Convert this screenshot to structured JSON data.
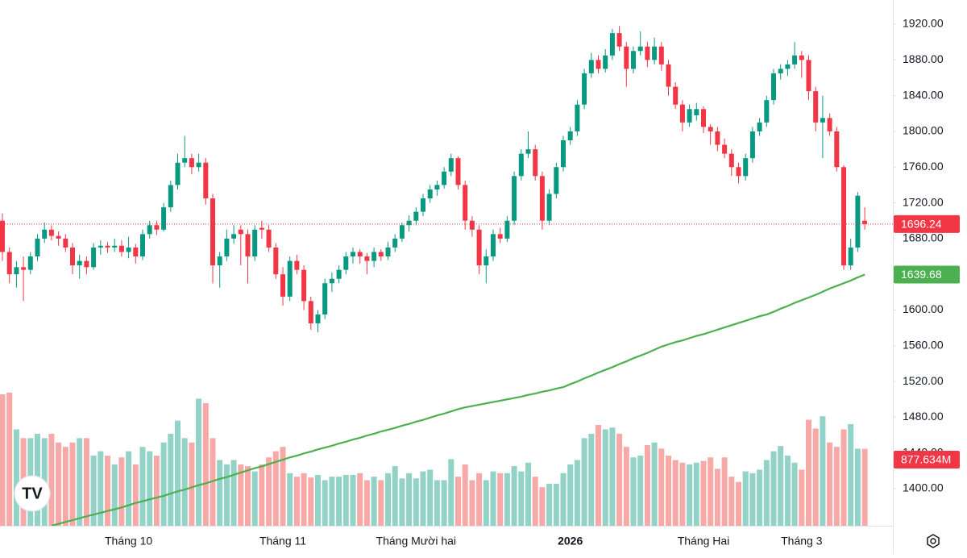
{
  "chart_data": {
    "type": "candlestick",
    "up_color": "#089981",
    "down_color": "#f23645",
    "volume_up_color": "#92d2c7",
    "volume_down_color": "#f7a9a7",
    "ylim": [
      1358.5,
      1947.1
    ],
    "yticks": [
      {
        "value": 1400,
        "label": "1400.00"
      },
      {
        "value": 1440,
        "label": "1440.00"
      },
      {
        "value": 1480,
        "label": "1480.00"
      },
      {
        "value": 1520,
        "label": "1520.00"
      },
      {
        "value": 1560,
        "label": "1560.00"
      },
      {
        "value": 1600,
        "label": "1600.00"
      },
      {
        "value": 1640,
        "label": "1640.00"
      },
      {
        "value": 1680,
        "label": "1680.00"
      },
      {
        "value": 1720,
        "label": "1720.00"
      },
      {
        "value": 1760,
        "label": "1760.00"
      },
      {
        "value": 1800,
        "label": "1800.00"
      },
      {
        "value": 1840,
        "label": "1840.00"
      },
      {
        "value": 1880,
        "label": "1880.00"
      },
      {
        "value": 1920,
        "label": "1920.00"
      }
    ],
    "grid": false,
    "categories": [
      null,
      null,
      null,
      null,
      null,
      null,
      null,
      null,
      null,
      null,
      null,
      null,
      null,
      null,
      null,
      null,
      null,
      null,
      "Tháng 10",
      null,
      null,
      null,
      null,
      null,
      null,
      null,
      null,
      null,
      null,
      null,
      null,
      null,
      null,
      null,
      null,
      null,
      null,
      null,
      null,
      null,
      "Tháng 11",
      null,
      null,
      null,
      null,
      null,
      null,
      null,
      null,
      null,
      null,
      null,
      null,
      null,
      null,
      null,
      null,
      null,
      null,
      "Tháng Mười hai",
      null,
      null,
      null,
      null,
      null,
      null,
      null,
      null,
      null,
      null,
      null,
      null,
      null,
      null,
      null,
      null,
      null,
      null,
      null,
      null,
      null,
      "2026",
      null,
      null,
      null,
      null,
      null,
      null,
      null,
      null,
      null,
      null,
      null,
      null,
      null,
      null,
      null,
      null,
      null,
      null,
      "Tháng Hai",
      null,
      null,
      null,
      null,
      null,
      null,
      null,
      null,
      null,
      null,
      null,
      null,
      null,
      "Tháng 3",
      null,
      null,
      null,
      null,
      null,
      null,
      null,
      null,
      null
    ],
    "candles": [
      [
        1700,
        1708,
        1655,
        1665
      ],
      [
        1665,
        1670,
        1630,
        1640
      ],
      [
        1640,
        1655,
        1625,
        1648
      ],
      [
        1648,
        1660,
        1610,
        1645
      ],
      [
        1645,
        1665,
        1640,
        1660
      ],
      [
        1660,
        1685,
        1655,
        1680
      ],
      [
        1680,
        1698,
        1675,
        1690
      ],
      [
        1690,
        1695,
        1678,
        1683
      ],
      [
        1683,
        1688,
        1672,
        1680
      ],
      [
        1680,
        1685,
        1665,
        1670
      ],
      [
        1670,
        1675,
        1640,
        1650
      ],
      [
        1650,
        1662,
        1635,
        1655
      ],
      [
        1655,
        1660,
        1640,
        1648
      ],
      [
        1648,
        1675,
        1645,
        1670
      ],
      [
        1670,
        1678,
        1662,
        1672
      ],
      [
        1672,
        1676,
        1664,
        1670
      ],
      [
        1670,
        1680,
        1665,
        1672
      ],
      [
        1672,
        1678,
        1660,
        1665
      ],
      [
        1665,
        1682,
        1658,
        1670
      ],
      [
        1670,
        1674,
        1652,
        1660
      ],
      [
        1660,
        1690,
        1656,
        1685
      ],
      [
        1685,
        1700,
        1680,
        1695
      ],
      [
        1695,
        1700,
        1684,
        1690
      ],
      [
        1690,
        1720,
        1688,
        1715
      ],
      [
        1715,
        1745,
        1710,
        1740
      ],
      [
        1740,
        1775,
        1735,
        1765
      ],
      [
        1765,
        1795,
        1760,
        1770
      ],
      [
        1770,
        1775,
        1752,
        1760
      ],
      [
        1760,
        1775,
        1755,
        1765
      ],
      [
        1765,
        1770,
        1718,
        1725
      ],
      [
        1725,
        1730,
        1630,
        1650
      ],
      [
        1650,
        1665,
        1625,
        1660
      ],
      [
        1660,
        1690,
        1655,
        1680
      ],
      [
        1680,
        1695,
        1674,
        1685
      ],
      [
        1690,
        1695,
        1650,
        1685
      ],
      [
        1685,
        1690,
        1630,
        1660
      ],
      [
        1660,
        1695,
        1655,
        1690
      ],
      [
        1692,
        1700,
        1680,
        1690
      ],
      [
        1690,
        1695,
        1665,
        1670
      ],
      [
        1670,
        1675,
        1635,
        1640
      ],
      [
        1640,
        1648,
        1605,
        1615
      ],
      [
        1615,
        1660,
        1610,
        1655
      ],
      [
        1655,
        1662,
        1640,
        1645
      ],
      [
        1645,
        1650,
        1600,
        1610
      ],
      [
        1610,
        1615,
        1578,
        1585
      ],
      [
        1585,
        1600,
        1575,
        1595
      ],
      [
        1595,
        1635,
        1590,
        1630
      ],
      [
        1630,
        1642,
        1620,
        1635
      ],
      [
        1635,
        1650,
        1630,
        1645
      ],
      [
        1645,
        1665,
        1640,
        1660
      ],
      [
        1660,
        1670,
        1652,
        1665
      ],
      [
        1665,
        1668,
        1652,
        1660
      ],
      [
        1660,
        1664,
        1640,
        1655
      ],
      [
        1655,
        1670,
        1648,
        1665
      ],
      [
        1665,
        1668,
        1655,
        1660
      ],
      [
        1660,
        1676,
        1656,
        1670
      ],
      [
        1670,
        1685,
        1665,
        1680
      ],
      [
        1680,
        1698,
        1676,
        1695
      ],
      [
        1695,
        1706,
        1688,
        1700
      ],
      [
        1700,
        1715,
        1695,
        1710
      ],
      [
        1710,
        1730,
        1705,
        1725
      ],
      [
        1725,
        1740,
        1720,
        1735
      ],
      [
        1735,
        1745,
        1728,
        1740
      ],
      [
        1740,
        1760,
        1736,
        1755
      ],
      [
        1755,
        1775,
        1750,
        1770
      ],
      [
        1770,
        1772,
        1735,
        1740
      ],
      [
        1740,
        1745,
        1690,
        1700
      ],
      [
        1700,
        1705,
        1682,
        1690
      ],
      [
        1690,
        1695,
        1640,
        1650
      ],
      [
        1650,
        1668,
        1630,
        1660
      ],
      [
        1660,
        1690,
        1655,
        1685
      ],
      [
        1685,
        1692,
        1675,
        1680
      ],
      [
        1680,
        1705,
        1676,
        1700
      ],
      [
        1700,
        1755,
        1695,
        1750
      ],
      [
        1750,
        1780,
        1745,
        1775
      ],
      [
        1775,
        1800,
        1770,
        1780
      ],
      [
        1780,
        1785,
        1745,
        1750
      ],
      [
        1750,
        1755,
        1690,
        1700
      ],
      [
        1700,
        1735,
        1695,
        1730
      ],
      [
        1730,
        1765,
        1725,
        1760
      ],
      [
        1760,
        1795,
        1755,
        1790
      ],
      [
        1790,
        1805,
        1785,
        1800
      ],
      [
        1800,
        1835,
        1795,
        1830
      ],
      [
        1830,
        1870,
        1825,
        1865
      ],
      [
        1865,
        1888,
        1860,
        1880
      ],
      [
        1880,
        1885,
        1865,
        1870
      ],
      [
        1870,
        1892,
        1866,
        1885
      ],
      [
        1885,
        1915,
        1880,
        1910
      ],
      [
        1910,
        1918,
        1890,
        1895
      ],
      [
        1895,
        1900,
        1850,
        1870
      ],
      [
        1870,
        1895,
        1865,
        1890
      ],
      [
        1890,
        1912,
        1885,
        1895
      ],
      [
        1895,
        1900,
        1872,
        1880
      ],
      [
        1880,
        1905,
        1875,
        1895
      ],
      [
        1895,
        1900,
        1868,
        1875
      ],
      [
        1875,
        1880,
        1840,
        1850
      ],
      [
        1850,
        1855,
        1825,
        1830
      ],
      [
        1830,
        1835,
        1800,
        1810
      ],
      [
        1810,
        1830,
        1805,
        1825
      ],
      [
        1818,
        1832,
        1812,
        1825
      ],
      [
        1825,
        1828,
        1798,
        1805
      ],
      [
        1805,
        1808,
        1785,
        1800
      ],
      [
        1800,
        1805,
        1778,
        1785
      ],
      [
        1785,
        1792,
        1770,
        1775
      ],
      [
        1775,
        1780,
        1750,
        1760
      ],
      [
        1760,
        1765,
        1742,
        1750
      ],
      [
        1750,
        1775,
        1745,
        1770
      ],
      [
        1770,
        1805,
        1765,
        1800
      ],
      [
        1800,
        1815,
        1795,
        1810
      ],
      [
        1810,
        1840,
        1805,
        1835
      ],
      [
        1835,
        1870,
        1830,
        1865
      ],
      [
        1865,
        1875,
        1858,
        1870
      ],
      [
        1870,
        1880,
        1862,
        1875
      ],
      [
        1875,
        1900,
        1870,
        1885
      ],
      [
        1885,
        1890,
        1860,
        1880
      ],
      [
        1880,
        1885,
        1835,
        1845
      ],
      [
        1845,
        1850,
        1800,
        1810
      ],
      [
        1810,
        1840,
        1770,
        1815
      ],
      [
        1815,
        1820,
        1795,
        1800
      ],
      [
        1800,
        1805,
        1755,
        1760
      ],
      [
        1760,
        1762,
        1645,
        1650
      ],
      [
        1650,
        1680,
        1645,
        1670
      ],
      [
        1670,
        1732,
        1665,
        1728
      ],
      [
        1700,
        1715,
        1690,
        1696.24
      ]
    ],
    "volume": {
      "lim": [
        0,
        6000
      ],
      "values": [
        1500,
        1520,
        1100,
        1000,
        1000,
        1050,
        1000,
        1050,
        950,
        900,
        950,
        1000,
        1000,
        800,
        850,
        800,
        700,
        780,
        850,
        700,
        900,
        850,
        800,
        950,
        1050,
        1200,
        1000,
        950,
        1450,
        1400,
        1000,
        750,
        700,
        750,
        700,
        680,
        620,
        700,
        780,
        850,
        900,
        600,
        560,
        600,
        550,
        580,
        520,
        560,
        560,
        580,
        580,
        600,
        520,
        560,
        520,
        600,
        680,
        540,
        600,
        540,
        620,
        640,
        520,
        520,
        760,
        560,
        700,
        520,
        600,
        520,
        620,
        600,
        600,
        680,
        620,
        720,
        560,
        440,
        480,
        480,
        600,
        700,
        750,
        1000,
        1050,
        1150,
        1100,
        1120,
        1050,
        900,
        780,
        800,
        920,
        950,
        880,
        800,
        750,
        720,
        700,
        720,
        740,
        780,
        650,
        780,
        560,
        500,
        620,
        600,
        640,
        750,
        850,
        910,
        800,
        720,
        640,
        1210,
        1110,
        1250,
        950,
        900,
        1100,
        1160,
        880,
        877.634
      ],
      "value_labels": [
        null,
        null,
        null,
        null,
        null,
        null,
        null,
        null,
        null,
        null,
        null,
        null,
        null,
        null,
        null,
        null,
        null,
        null,
        null,
        null,
        null,
        null,
        null,
        null,
        null,
        null,
        null,
        null,
        null,
        null,
        null,
        null,
        null,
        null,
        null,
        null,
        null,
        null,
        null,
        null,
        null,
        null,
        null,
        null,
        null,
        null,
        null,
        null,
        null,
        null,
        null,
        null,
        null,
        null,
        null,
        null,
        null,
        null,
        null,
        null,
        null,
        null,
        null,
        null,
        null,
        null,
        null,
        null,
        null,
        null,
        null,
        null,
        null,
        null,
        null,
        null,
        null,
        null,
        null,
        null,
        null,
        null,
        null,
        null,
        null,
        null,
        null,
        null,
        null,
        null,
        null,
        null,
        null,
        null,
        null,
        null,
        null,
        null,
        null,
        null,
        null,
        null,
        null,
        null,
        null,
        null,
        null,
        null,
        null,
        null,
        null,
        null,
        null,
        null,
        null,
        null,
        null,
        null,
        null,
        null,
        null,
        null,
        null,
        "877.634M"
      ]
    },
    "ma": {
      "color": "#4caf50",
      "values": [
        null,
        null,
        null,
        null,
        null,
        null,
        null,
        1358.5,
        1360.6,
        1362.7,
        1364.8,
        1366.9,
        1369,
        1371,
        1373,
        1375,
        1377,
        1379,
        1381.5,
        1384,
        1386,
        1388,
        1390,
        1392,
        1394.5,
        1397,
        1399,
        1401.5,
        1404,
        1406,
        1408.5,
        1411,
        1413,
        1415.5,
        1418,
        1420.5,
        1423,
        1425,
        1427.5,
        1430,
        1432.5,
        1435,
        1437,
        1439.5,
        1441.5,
        1444,
        1446,
        1448,
        1450.5,
        1452.5,
        1455,
        1457,
        1459.5,
        1461.5,
        1464,
        1466,
        1468,
        1470.5,
        1472.5,
        1475,
        1477,
        1479.5,
        1482,
        1484,
        1486.5,
        1489,
        1491,
        1492.5,
        1494,
        1495.5,
        1497,
        1498.5,
        1500,
        1501.5,
        1503,
        1505,
        1506.5,
        1508.5,
        1510,
        1512,
        1513.7,
        1517,
        1520,
        1523.5,
        1526.5,
        1530,
        1533,
        1536,
        1539.5,
        1542.5,
        1546,
        1549,
        1552,
        1555.5,
        1559,
        1561.5,
        1564,
        1566,
        1568.5,
        1571,
        1573,
        1575.5,
        1578,
        1580.5,
        1583,
        1585.5,
        1588,
        1590.5,
        1593,
        1595,
        1598,
        1601.5,
        1604.5,
        1608,
        1611,
        1614,
        1617,
        1620.5,
        1624,
        1627,
        1630,
        1633,
        1636.5,
        1639.68
      ]
    }
  }
}
